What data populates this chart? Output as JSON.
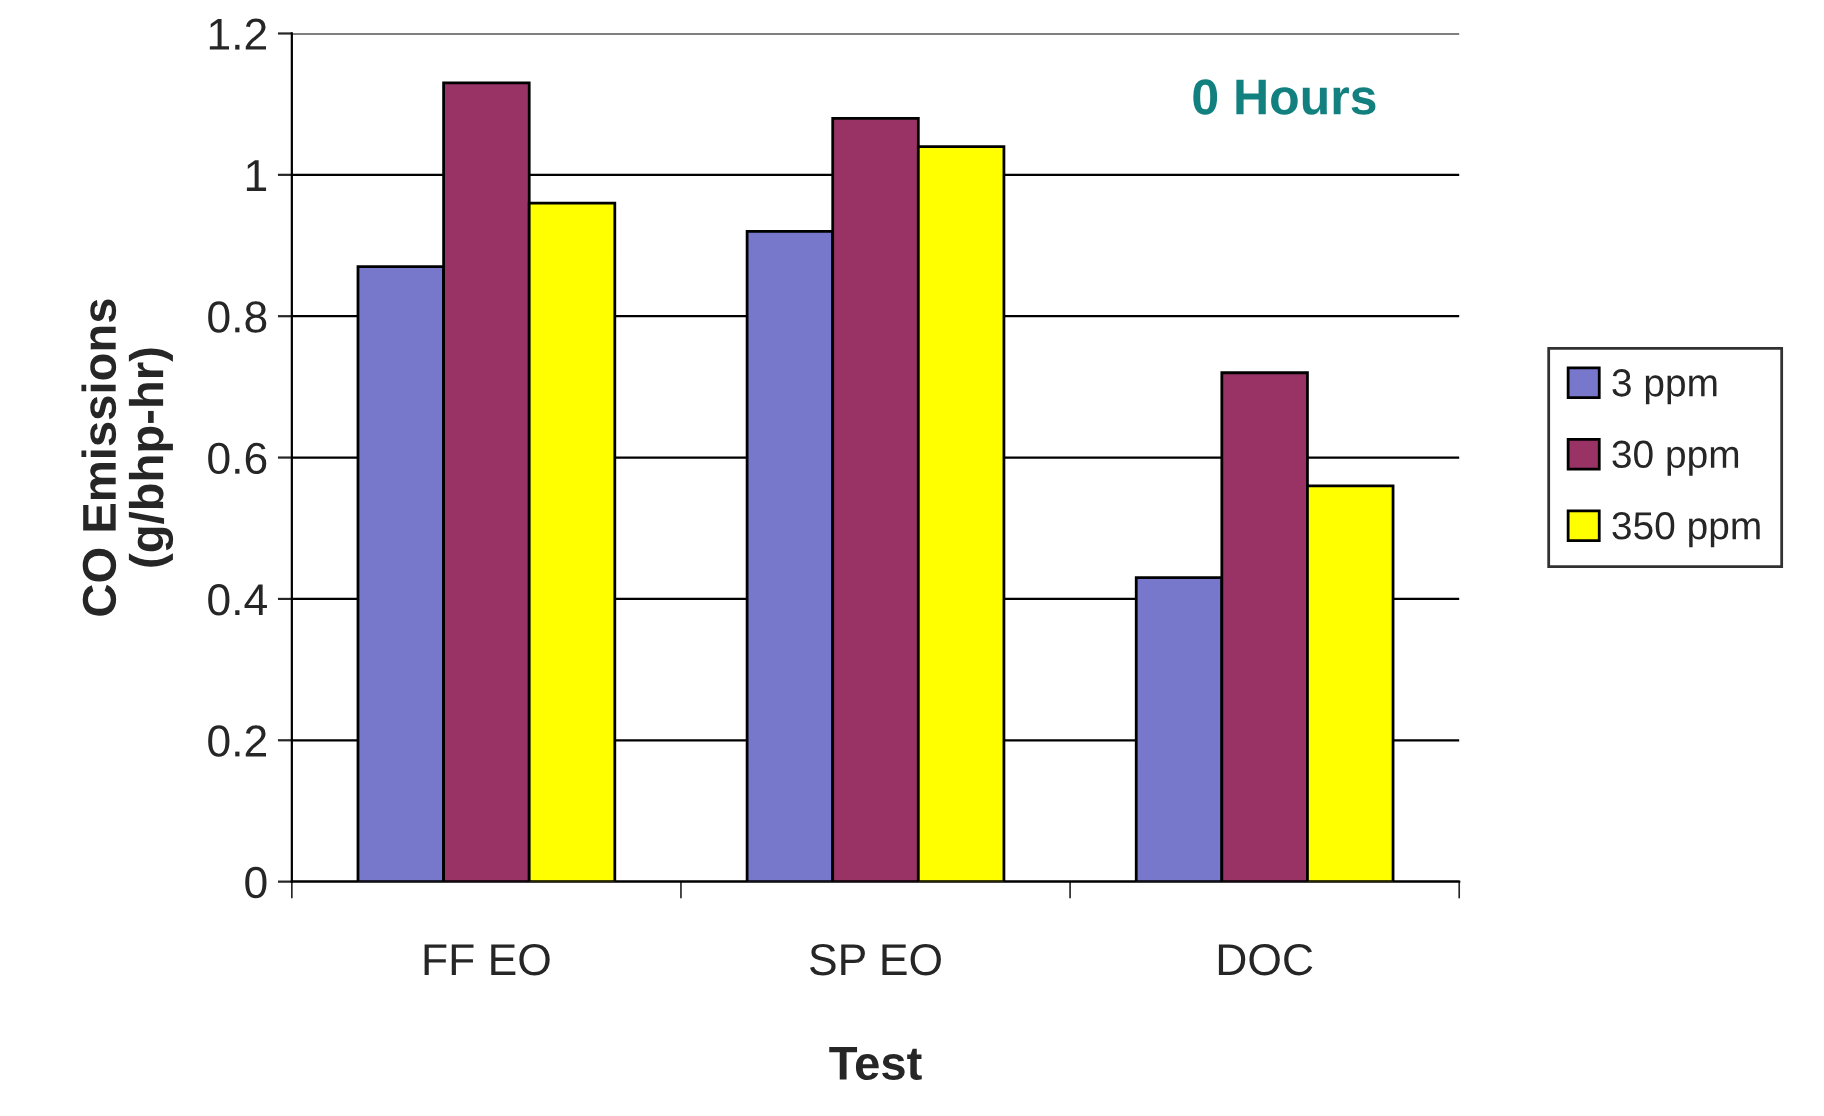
{
  "chart_data": {
    "type": "bar",
    "xlabel": "Test",
    "ylabel": "CO Emissions\n(g/bhp-hr)",
    "categories": [
      "FF EO",
      "SP EO",
      "DOC"
    ],
    "series": [
      {
        "name": "3 ppm",
        "color": "#7777cc",
        "values": [
          0.87,
          0.92,
          0.43
        ]
      },
      {
        "name": "30 ppm",
        "color": "#993366",
        "values": [
          1.13,
          1.08,
          0.72
        ]
      },
      {
        "name": "350 ppm",
        "color": "#ffff00",
        "values": [
          0.96,
          1.04,
          0.56
        ]
      }
    ],
    "ylim": [
      0,
      1.2
    ],
    "yticks": [
      0,
      0.2,
      0.4,
      0.6,
      0.8,
      1,
      1.2
    ],
    "grid": "y",
    "legend": "right",
    "annotations": [
      "0 Hours"
    ]
  }
}
